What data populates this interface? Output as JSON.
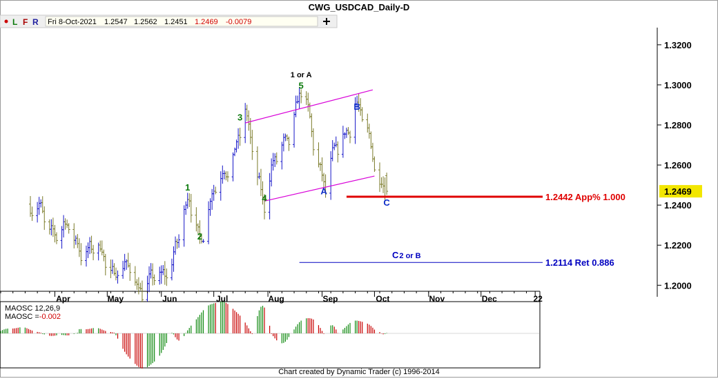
{
  "title": "CWG_USDCAD_Daily-D",
  "toolbar": {
    "dot_icon": "red-dot-icon",
    "buttons": [
      "L",
      "F",
      "R"
    ],
    "date": "Fri 8-Oct-2021",
    "open": "1.2547",
    "high": "1.2562",
    "low": "1.2451",
    "close": "1.2469",
    "change": "-0.0079",
    "crosshair_icon": "plus-icon"
  },
  "footer": "Chart created by Dynamic Trader  (c) 1996-2014",
  "colors": {
    "up_bar": "#1515c8",
    "down_bar": "#7a7a28",
    "channel": "#d800d8",
    "target_red": "#e00000",
    "target_blue": "#0000c0",
    "wave_green": "#0c7a0c",
    "wave_blue": "#0c2cc8",
    "osc_up": "#108a10",
    "osc_down": "#c80000",
    "last_price_box": "#f2e600"
  },
  "chart_data": [
    {
      "type": "ohlc",
      "x_axis_labels": [
        "Apr",
        "May",
        "Jun",
        "Jul",
        "Aug",
        "Sep",
        "Oct",
        "Nov",
        "Dec",
        "22"
      ],
      "y_ticks": [
        "1.2000",
        "1.2200",
        "1.2400",
        "1.2600",
        "1.2800",
        "1.3000",
        "1.3200"
      ],
      "ylim": [
        1.197,
        1.3265
      ],
      "last_price": "1.2469",
      "key_prices": [
        {
          "date": "2021-03-18",
          "price": 1.2365
        },
        {
          "date": "2021-05-18",
          "price": 1.201
        },
        {
          "date": "2021-06-01",
          "price": 1.2007
        },
        {
          "date": "2021-06-17",
          "price": 1.239
        },
        {
          "date": "2021-06-23",
          "price": 1.2255
        },
        {
          "date": "2021-07-19",
          "price": 1.281
        },
        {
          "date": "2021-07-30",
          "price": 1.243
        },
        {
          "date": "2021-08-20",
          "price": 1.295
        },
        {
          "date": "2021-09-03",
          "price": 1.25
        },
        {
          "date": "2021-09-20",
          "price": 1.29
        },
        {
          "date": "2021-10-08",
          "price": 1.2451
        }
      ],
      "channel": {
        "upper": [
          {
            "date": "2021-07-19",
            "price": 1.281
          },
          {
            "date": "2021-09-30",
            "price": 1.2975
          }
        ],
        "lower": [
          {
            "date": "2021-07-30",
            "price": 1.242
          },
          {
            "date": "2021-10-01",
            "price": 1.2545
          }
        ]
      },
      "wave_labels": [
        {
          "text": "1",
          "date": "2021-06-16",
          "price": 1.2472,
          "color": "green"
        },
        {
          "text": "2",
          "date": "2021-06-23",
          "price": 1.2228,
          "color": "green"
        },
        {
          "text": "3",
          "date": "2021-07-16",
          "price": 1.2822,
          "color": "green"
        },
        {
          "text": "4",
          "date": "2021-07-30",
          "price": 1.242,
          "color": "green"
        },
        {
          "text": "5",
          "date": "2021-08-20",
          "price": 1.298,
          "color": "green"
        },
        {
          "text": "1 or A",
          "date": "2021-08-20",
          "price": 1.3038,
          "color": "black"
        },
        {
          "text": "A",
          "date": "2021-09-02",
          "price": 1.2454,
          "color": "blue"
        },
        {
          "text": "B",
          "date": "2021-09-21",
          "price": 1.2876,
          "color": "blue"
        },
        {
          "text": "C",
          "date": "2021-10-08",
          "price": 1.2397,
          "color": "blue"
        }
      ],
      "targets": [
        {
          "price": 1.2442,
          "label": "1.2442 App% 1.000",
          "style": "thick-red",
          "from": "2021-09-15"
        },
        {
          "price": 1.2114,
          "label": "1.2114 Ret 0.886",
          "style": "thin-blue",
          "from": "2021-08-19"
        }
      ],
      "target_annotation": {
        "main": "C",
        "sub": "2 or B"
      }
    },
    {
      "type": "histogram",
      "name": "MAOSC 12,26,9",
      "value_label": "MAOSC =",
      "value": "-0.002",
      "phases": [
        {
          "from": "2021-03-01",
          "to": "2021-03-24",
          "a": 0.2,
          "b": 0.15
        },
        {
          "from": "2021-03-25",
          "to": "2021-04-14",
          "a": -0.1,
          "b": -0.05
        },
        {
          "from": "2021-04-15",
          "to": "2021-05-05",
          "a": 0.3,
          "b": 0.1
        },
        {
          "from": "2021-05-06",
          "to": "2021-06-07",
          "a": -0.2,
          "b": -1.1
        },
        {
          "from": "2021-06-08",
          "to": "2021-06-15",
          "a": -0.1,
          "b": -0.2
        },
        {
          "from": "2021-06-16",
          "to": "2021-07-23",
          "a": 0.2,
          "b": 1.0
        },
        {
          "from": "2021-07-24",
          "to": "2021-08-03",
          "a": 0.2,
          "b": 0.85
        },
        {
          "from": "2021-08-04",
          "to": "2021-08-14",
          "a": -0.2,
          "b": -0.3
        },
        {
          "from": "2021-08-15",
          "to": "2021-09-02",
          "a": 0.1,
          "b": 0.5
        },
        {
          "from": "2021-09-03",
          "to": "2021-09-10",
          "a": 0.05,
          "b": 0.25
        },
        {
          "from": "2021-09-11",
          "to": "2021-10-03",
          "a": 0.1,
          "b": 0.4
        },
        {
          "from": "2021-10-04",
          "to": "2021-10-08",
          "a": 0.15,
          "b": -0.05
        }
      ]
    }
  ]
}
